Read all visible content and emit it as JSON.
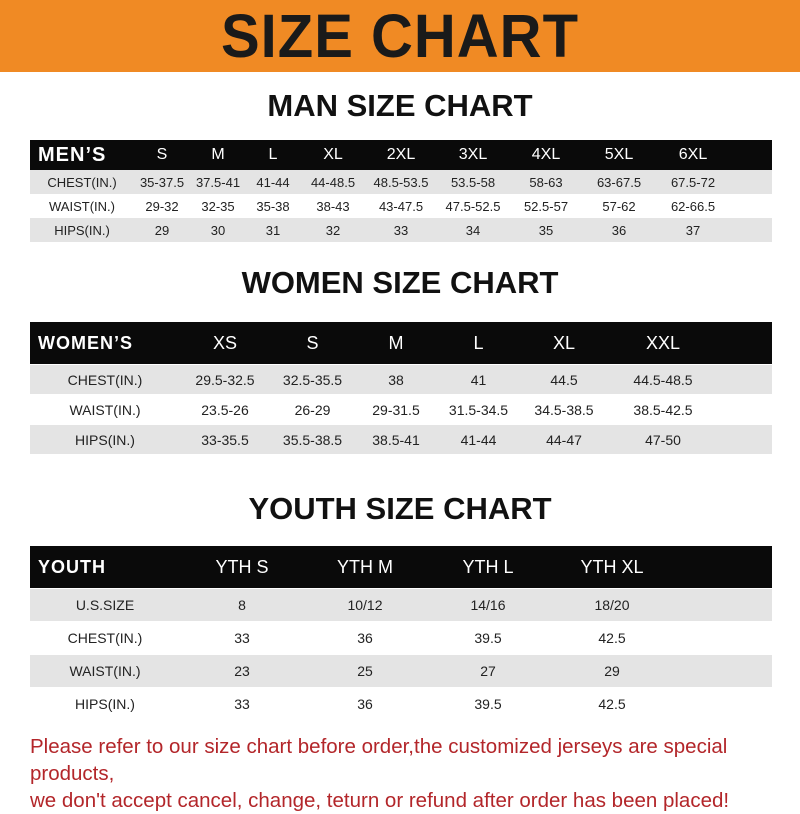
{
  "banner": {
    "title": "SIZE CHART",
    "color": "#f08a24"
  },
  "men": {
    "title": "MAN SIZE CHART",
    "header": [
      "MEN’S",
      "S",
      "M",
      "L",
      "XL",
      "2XL",
      "3XL",
      "4XL",
      "5XL",
      "6XL"
    ],
    "rows": [
      [
        "CHEST(IN.)",
        "35-37.5",
        "37.5-41",
        "41-44",
        "44-48.5",
        "48.5-53.5",
        "53.5-58",
        "58-63",
        "63-67.5",
        "67.5-72"
      ],
      [
        "WAIST(IN.)",
        "29-32",
        "32-35",
        "35-38",
        "38-43",
        "43-47.5",
        "47.5-52.5",
        "52.5-57",
        "57-62",
        "62-66.5"
      ],
      [
        "HIPS(IN.)",
        "29",
        "30",
        "31",
        "32",
        "33",
        "34",
        "35",
        "36",
        "37"
      ]
    ]
  },
  "women": {
    "title": "WOMEN SIZE CHART",
    "header": [
      "WOMEN’S",
      "XS",
      "S",
      "M",
      "L",
      "XL",
      "XXL"
    ],
    "rows": [
      [
        "CHEST(IN.)",
        "29.5-32.5",
        "32.5-35.5",
        "38",
        "41",
        "44.5",
        "44.5-48.5"
      ],
      [
        "WAIST(IN.)",
        "23.5-26",
        "26-29",
        "29-31.5",
        "31.5-34.5",
        "34.5-38.5",
        "38.5-42.5"
      ],
      [
        "HIPS(IN.)",
        "33-35.5",
        "35.5-38.5",
        "38.5-41",
        "41-44",
        "44-47",
        "47-50"
      ]
    ]
  },
  "youth": {
    "title": "YOUTH SIZE CHART",
    "header": [
      "YOUTH",
      "YTH S",
      "YTH M",
      "YTH L",
      "YTH XL"
    ],
    "rows": [
      [
        "U.S.SIZE",
        "8",
        "10/12",
        "14/16",
        "18/20"
      ],
      [
        "CHEST(IN.)",
        "33",
        "36",
        "39.5",
        "42.5"
      ],
      [
        "WAIST(IN.)",
        "23",
        "25",
        "27",
        "29"
      ],
      [
        "HIPS(IN.)",
        "33",
        "36",
        "39.5",
        "42.5"
      ]
    ]
  },
  "note": {
    "line1": "Please refer to our size chart before order,the customized jerseys are special products,",
    "line2": "we don't accept cancel, change, teturn or refund after order has been placed!",
    "color": "#b3262a"
  }
}
